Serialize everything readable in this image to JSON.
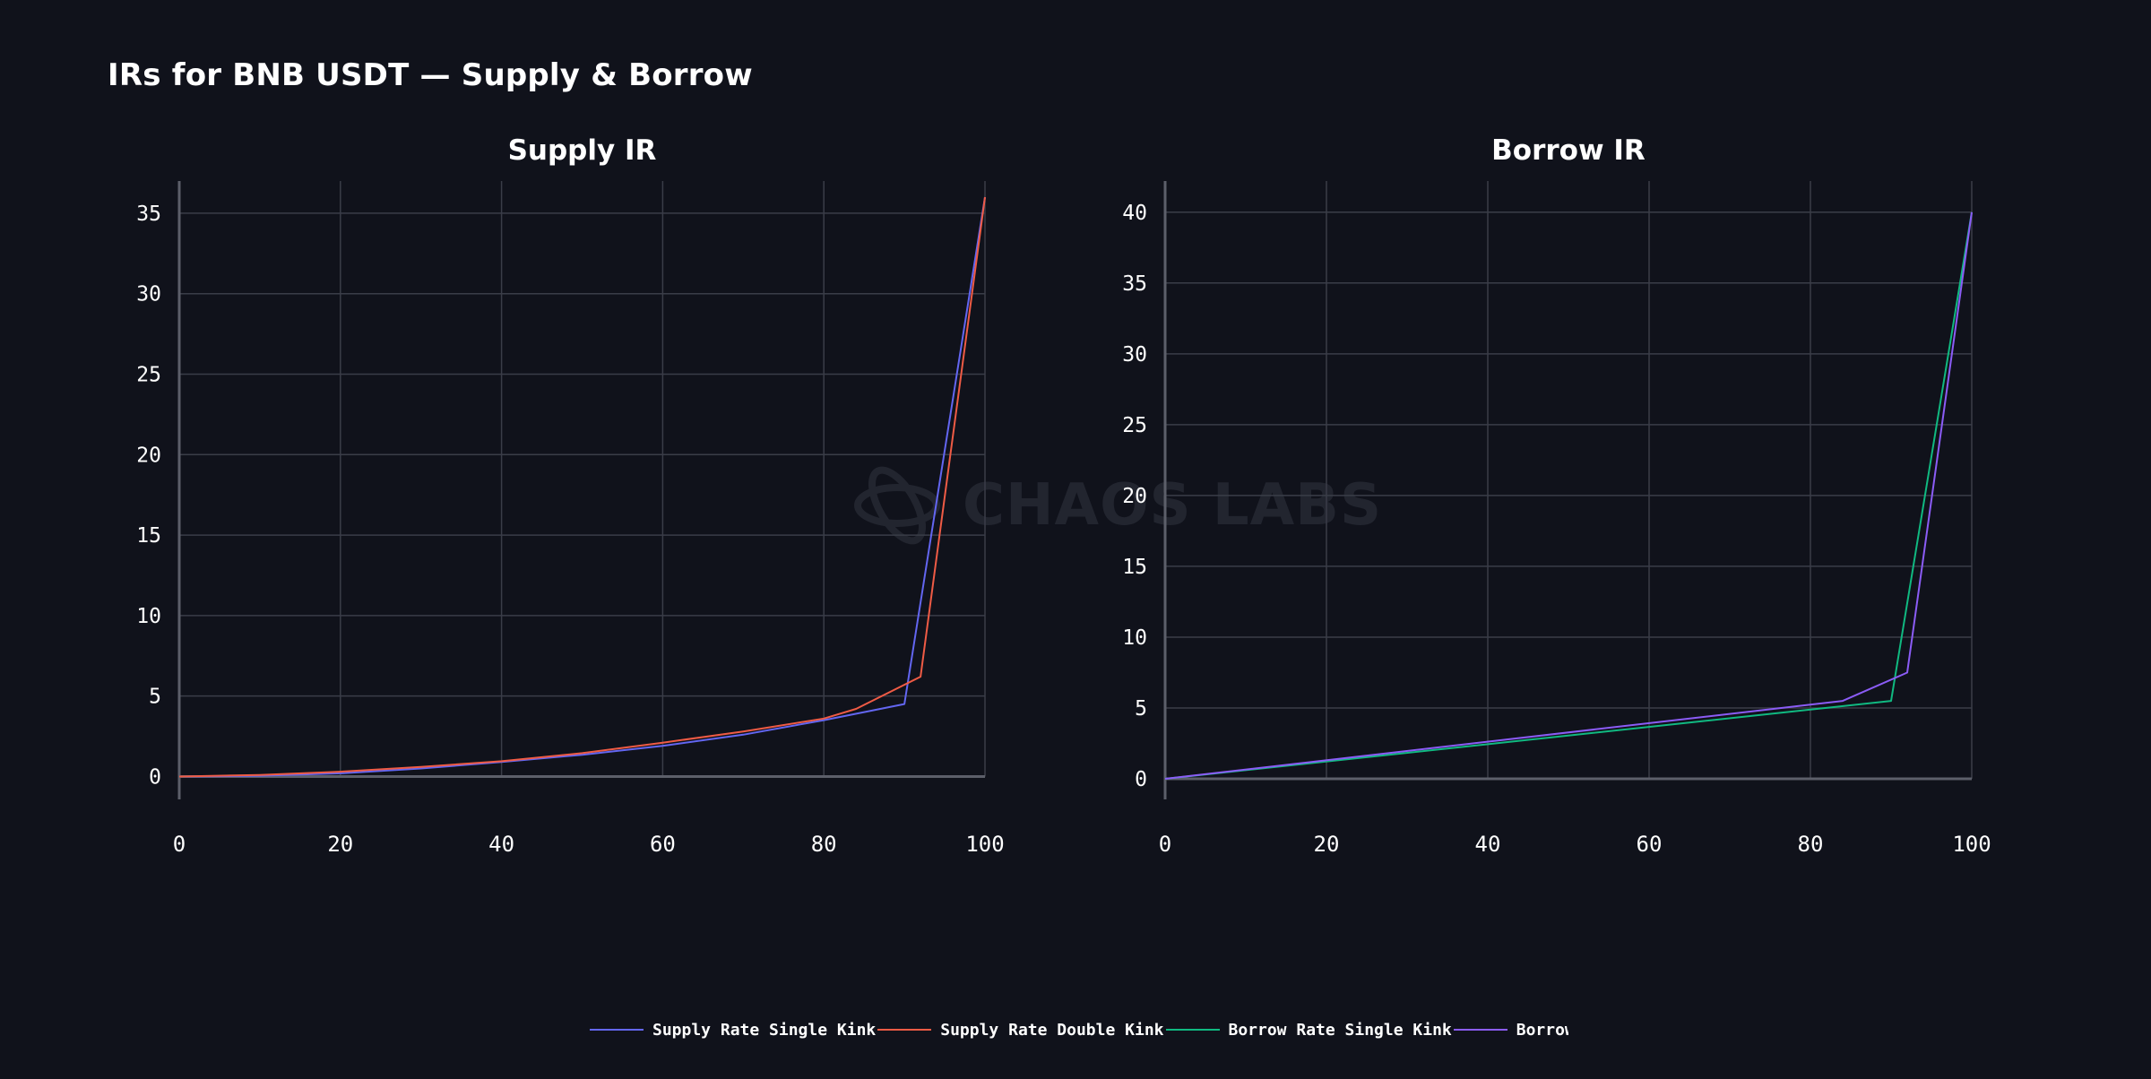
{
  "page": {
    "title": "IRs for BNB USDT — Supply & Borrow"
  },
  "watermark": {
    "text": "CHAOS LABS",
    "icon": "chaos-labs-logo-icon"
  },
  "colors": {
    "background": "#10121b",
    "grid": "#3a3d48",
    "axis": "#5c5f6a",
    "supply_single": "#6366f1",
    "supply_double": "#ef5b45",
    "borrow_single": "#10b981",
    "borrow_double": "#8b5cf6"
  },
  "legend": [
    {
      "label": "Supply Rate Single Kink",
      "color": "#6366f1"
    },
    {
      "label": "Supply Rate Double Kink",
      "color": "#ef5b45"
    },
    {
      "label": "Borrow Rate Single Kink",
      "color": "#10b981"
    },
    {
      "label": "Borrow Rate Double K:",
      "color": "#8b5cf6"
    }
  ],
  "chart_data": [
    {
      "type": "line",
      "title": "Supply IR",
      "xlabel": "",
      "ylabel": "",
      "xlim": [
        0,
        100
      ],
      "ylim": [
        -1.2,
        37
      ],
      "xticks": [
        0,
        20,
        40,
        60,
        80,
        100
      ],
      "yticks": [
        0,
        5,
        10,
        15,
        20,
        25,
        30,
        35
      ],
      "grid": true,
      "series": [
        {
          "name": "Supply Rate Single Kink",
          "color": "#6366f1",
          "x": [
            0,
            10,
            20,
            30,
            40,
            50,
            60,
            70,
            80,
            90,
            100
          ],
          "y": [
            0,
            0.05,
            0.2,
            0.5,
            0.9,
            1.35,
            1.9,
            2.6,
            3.5,
            4.5,
            36
          ]
        },
        {
          "name": "Supply Rate Double Kink",
          "color": "#ef5b45",
          "x": [
            0,
            10,
            20,
            30,
            40,
            50,
            60,
            70,
            80,
            84,
            92,
            100
          ],
          "y": [
            0,
            0.1,
            0.3,
            0.6,
            0.95,
            1.45,
            2.1,
            2.8,
            3.6,
            4.2,
            6.2,
            36
          ]
        }
      ]
    },
    {
      "type": "line",
      "title": "Borrow IR",
      "xlabel": "",
      "ylabel": "",
      "xlim": [
        0,
        100
      ],
      "ylim": [
        -1.2,
        42.2
      ],
      "xticks": [
        0,
        20,
        40,
        60,
        80,
        100
      ],
      "yticks": [
        0,
        5,
        10,
        15,
        20,
        25,
        30,
        35,
        40
      ],
      "grid": true,
      "series": [
        {
          "name": "Borrow Rate Single Kink",
          "color": "#10b981",
          "x": [
            0,
            90,
            100
          ],
          "y": [
            0,
            5.5,
            40
          ]
        },
        {
          "name": "Borrow Rate Double Kink",
          "color": "#8b5cf6",
          "x": [
            0,
            84,
            92,
            100
          ],
          "y": [
            0,
            5.5,
            7.5,
            40
          ]
        }
      ]
    }
  ]
}
